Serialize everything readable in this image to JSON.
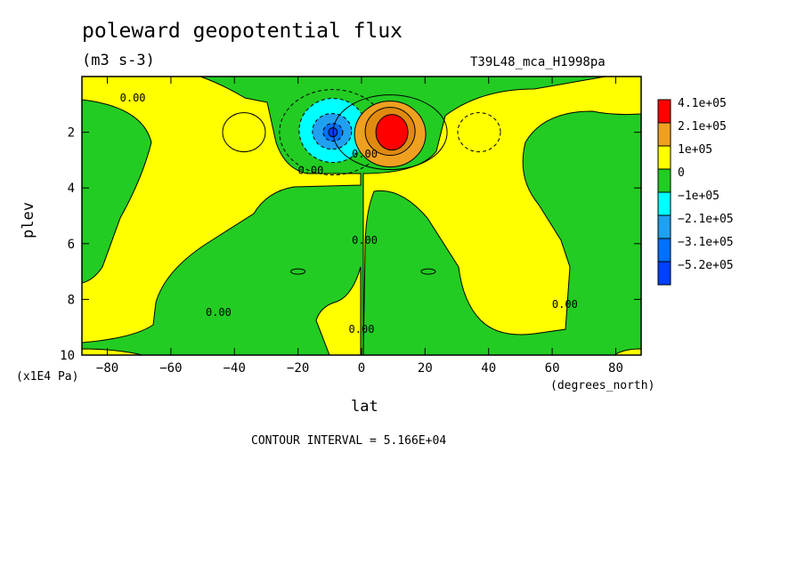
{
  "header": {
    "title": "poleward geopotential flux",
    "units": "(m3 s-3)",
    "run_id": "T39L48_mca_H1998pa"
  },
  "footer": {
    "contour_interval": "CONTOUR INTERVAL = 5.166E+04"
  },
  "chart_data": {
    "type": "heatmap",
    "title": "poleward geopotential flux",
    "subtitle": "(m3 s-3)",
    "xlabel": "lat",
    "xunit": "(degrees_north)",
    "ylabel": "plev",
    "yunit": "(x1E4 Pa)",
    "xlim": [
      -88,
      88
    ],
    "ylim": [
      10,
      0
    ],
    "xticks": [
      -80,
      -60,
      -40,
      -20,
      0,
      20,
      40,
      60,
      80
    ],
    "yticks": [
      2,
      4,
      6,
      8,
      10
    ],
    "legend": {
      "placement": "right",
      "levels": [
        {
          "label": "4.1e+05",
          "color": "#ff0000"
        },
        {
          "label": "2.1e+05",
          "color": "#f0a020"
        },
        {
          "label": "1e+05",
          "color": "#ffff00"
        },
        {
          "label": "0",
          "color": "#22cc22"
        },
        {
          "label": "−1e+05",
          "color": "#00ffff"
        },
        {
          "label": "−2.1e+05",
          "color": "#20a0f0"
        },
        {
          "label": "−3.1e+05",
          "color": "#0070ff"
        },
        {
          "label": "−5.2e+05",
          "color": "#0040ff"
        }
      ]
    },
    "background_field_color": "#22cc22",
    "positive_field_color": "#ffff00",
    "contour_labels": [
      {
        "text": "0.00",
        "lat": -72,
        "plev": 0.9
      },
      {
        "text": "0.00",
        "lat": -16,
        "plev": 3.5
      },
      {
        "text": "0.00",
        "lat": 1,
        "plev": 2.9
      },
      {
        "text": "0.00",
        "lat": 1,
        "plev": 6.0
      },
      {
        "text": "0.00",
        "lat": -45,
        "plev": 8.6
      },
      {
        "text": "0.00",
        "lat": 0,
        "plev": 9.2
      },
      {
        "text": "0.00",
        "lat": 64,
        "plev": 8.3
      }
    ],
    "extrema": [
      {
        "sign": "negative",
        "lat": -9,
        "plev": 2.0,
        "value_level": "−5.2e+05"
      },
      {
        "sign": "positive",
        "lat": 9,
        "plev": 2.0,
        "value_level": "4.1e+05"
      }
    ]
  }
}
